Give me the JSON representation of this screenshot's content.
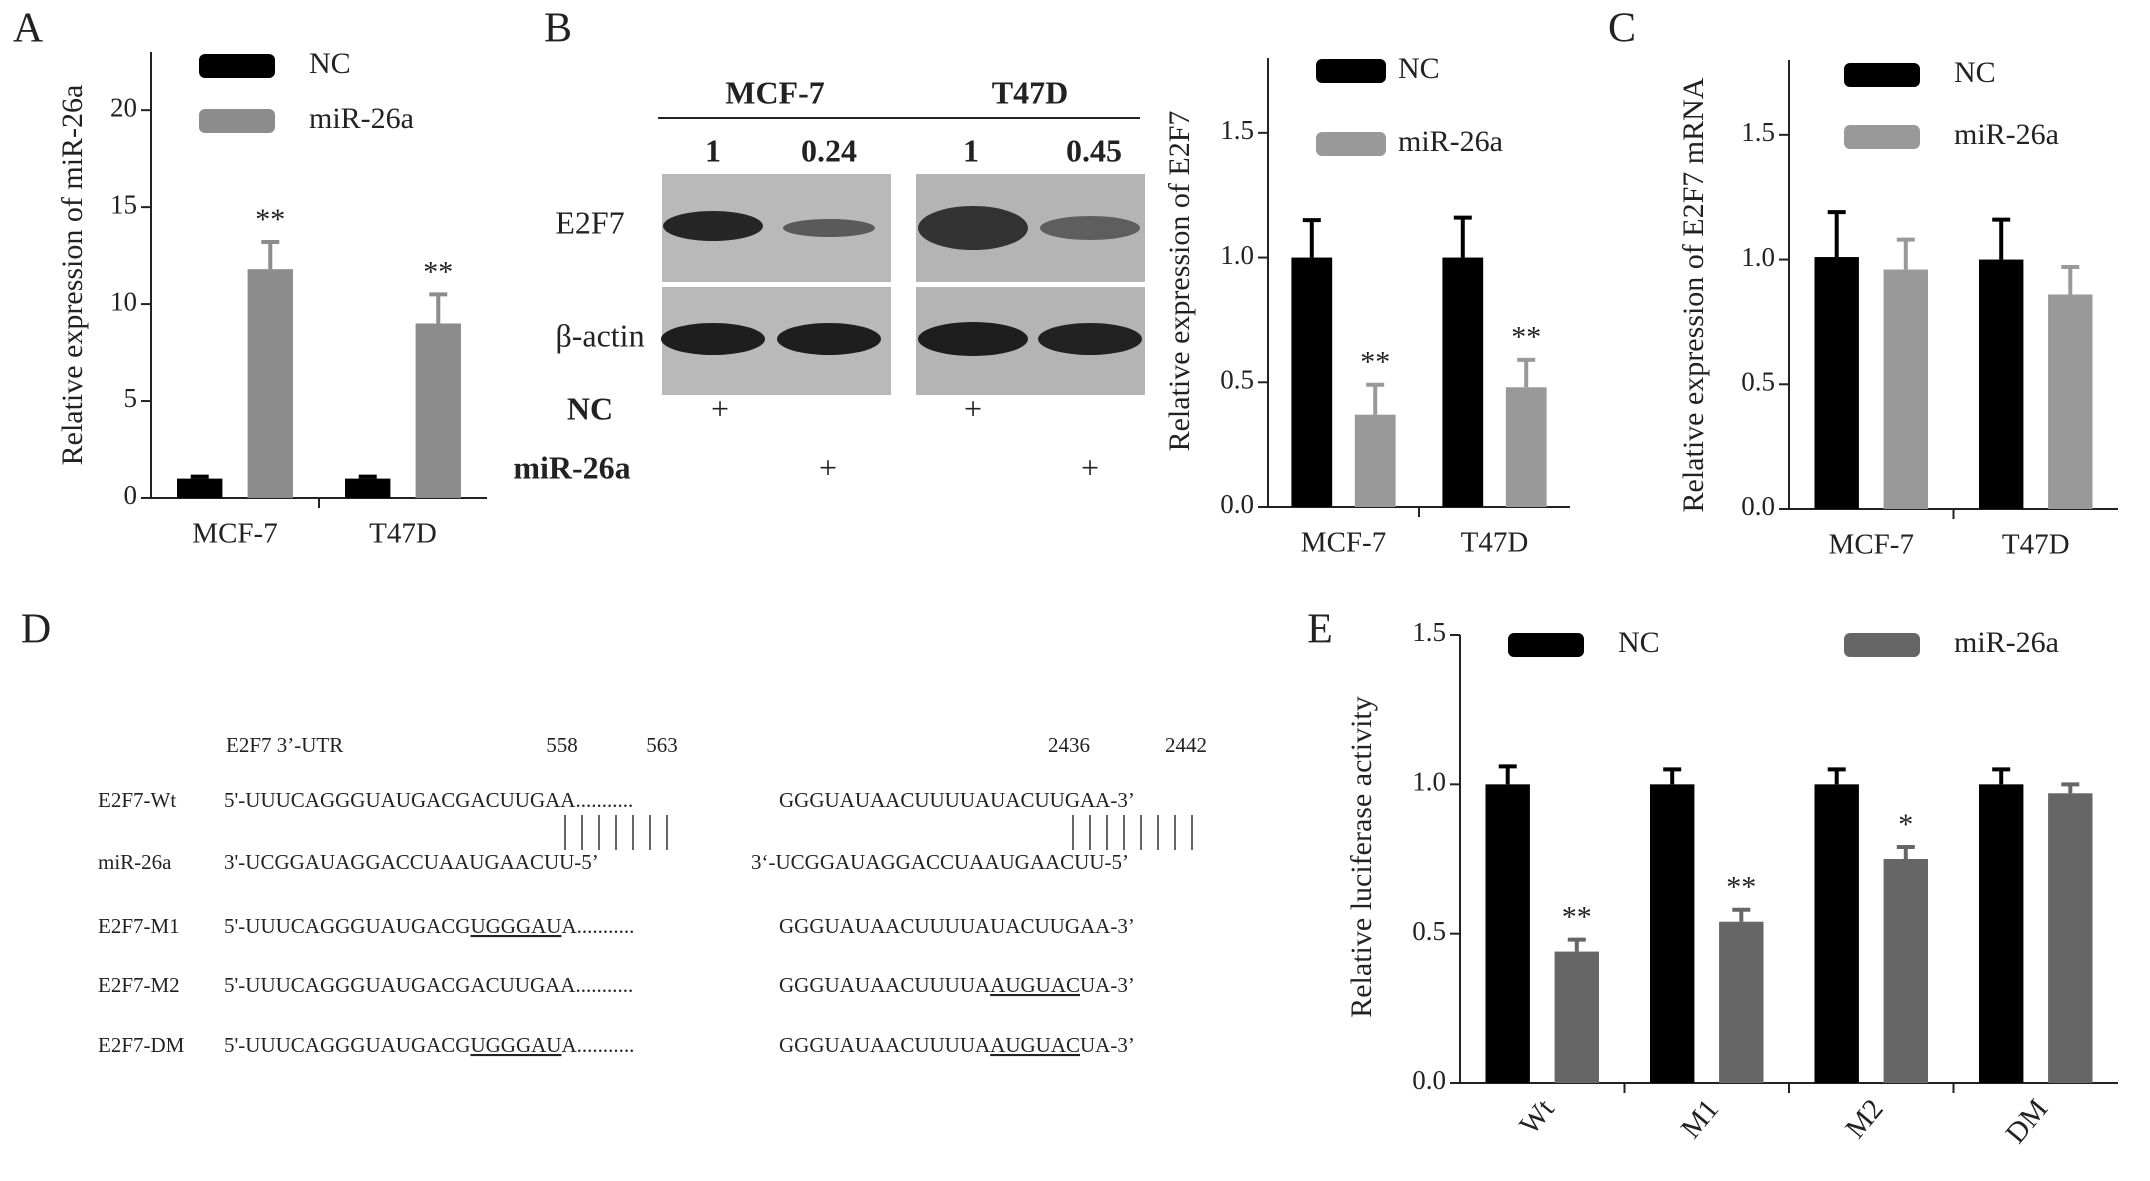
{
  "chart_data": [
    {
      "type": "bar",
      "label": "A",
      "ylabel": "Relative expression of miR-26a",
      "categories": [
        "MCF-7",
        "T47D"
      ],
      "series": [
        {
          "name": "NC",
          "color": "#000000",
          "values": [
            1,
            1
          ],
          "errors": [
            0.1,
            0.1
          ]
        },
        {
          "name": "miR-26a",
          "color": "#8c8c8c",
          "values": [
            11.8,
            9.0
          ],
          "errors": [
            1.4,
            1.5
          ],
          "stars": [
            "**",
            "**"
          ]
        }
      ],
      "ylim": [
        0,
        23
      ],
      "yticks": [
        0,
        5,
        10,
        15,
        20
      ]
    },
    {
      "type": "bar",
      "ylabel": "Relative expression of E2F7",
      "categories": [
        "MCF-7",
        "T47D"
      ],
      "series": [
        {
          "name": "NC",
          "color": "#000000",
          "values": [
            1.0,
            1.0
          ],
          "errors": [
            0.15,
            0.16
          ]
        },
        {
          "name": "miR-26a",
          "color": "#999999",
          "values": [
            0.37,
            0.48
          ],
          "errors": [
            0.12,
            0.11
          ],
          "stars": [
            "**",
            "**"
          ]
        }
      ],
      "ylim": [
        0,
        1.8
      ],
      "yticks": [
        {
          "value": 0,
          "label": "0.0"
        },
        {
          "value": 0.5,
          "label": "0.5"
        },
        {
          "value": 1,
          "label": "1.0"
        },
        {
          "value": 1.5,
          "label": "1.5"
        }
      ]
    },
    {
      "type": "bar",
      "label": "C",
      "ylabel": "Relative expression of E2F7 mRNA",
      "categories": [
        "MCF-7",
        "T47D"
      ],
      "series": [
        {
          "name": "NC",
          "color": "#000000",
          "values": [
            1.01,
            1.0
          ],
          "errors": [
            0.18,
            0.16
          ]
        },
        {
          "name": "miR-26a",
          "color": "#999999",
          "values": [
            0.96,
            0.86
          ],
          "errors": [
            0.12,
            0.11
          ]
        }
      ],
      "ylim": [
        0,
        1.8
      ],
      "yticks": [
        {
          "value": 0,
          "label": "0.0"
        },
        {
          "value": 0.5,
          "label": "0.5"
        },
        {
          "value": 1,
          "label": "1.0"
        },
        {
          "value": 1.5,
          "label": "1.5"
        }
      ]
    },
    {
      "type": "bar",
      "label": "E",
      "ylabel": "Relative luciferase activity",
      "categories": [
        "Wt",
        "M1",
        "M2",
        "DM"
      ],
      "series": [
        {
          "name": "NC",
          "color": "#000000",
          "values": [
            1,
            1,
            1,
            1
          ],
          "errors": [
            0.06,
            0.05,
            0.05,
            0.05
          ]
        },
        {
          "name": "miR-26a",
          "color": "#666666",
          "values": [
            0.44,
            0.54,
            0.75,
            0.97
          ],
          "errors": [
            0.04,
            0.04,
            0.04,
            0.03
          ],
          "stars": [
            "**",
            "**",
            "*",
            null
          ]
        }
      ],
      "ylim": [
        0,
        1.5
      ],
      "yticks": [
        {
          "value": 0,
          "label": "0.0"
        },
        {
          "value": 0.5,
          "label": "0.5"
        },
        {
          "value": 1,
          "label": "1.0"
        },
        {
          "value": 1.5,
          "label": "1.5"
        }
      ]
    }
  ],
  "blot": {
    "label": "B",
    "cell_lines": [
      "MCF-7",
      "T47D"
    ],
    "quantities": [
      "1",
      "0.24",
      "1",
      "0.45"
    ],
    "proteins": [
      "E2F7",
      "β-actin"
    ],
    "treatments": [
      {
        "name": "NC",
        "marks": [
          "+",
          "+"
        ]
      },
      {
        "name": "miR-26a",
        "marks": [
          "+",
          "+"
        ]
      }
    ]
  },
  "sequences": {
    "label": "D",
    "header": "E2F7 3’-UTR",
    "positions": [
      "558",
      "563",
      "2436",
      "2442"
    ],
    "rows": [
      {
        "name": "E2F7-Wt",
        "left": [
          {
            "text": "5'-UUUCAGGGUAUGACGACUUGAA..........."
          }
        ],
        "right": [
          {
            "text": "GGGUAUAACUUUUAUACUUGAA-3’"
          }
        ]
      },
      {
        "name": "miR-26a",
        "left": [
          {
            "text": "3'-UCGGAUAGGACCUAAUGAACUU-5’"
          }
        ],
        "right": [
          {
            "text": "3‘-UCGGAUAGGACCUAAUGAACUU-5’"
          }
        ]
      },
      {
        "name": "E2F7-M1",
        "left": [
          {
            "text": "5'-UUUCAGGGUAUGACG"
          },
          {
            "text": "UGGGAU",
            "underline": true
          },
          {
            "text": "A..........."
          }
        ],
        "right": [
          {
            "text": "GGGUAUAACUUUUAUACUUGAA-3’"
          }
        ]
      },
      {
        "name": "E2F7-M2",
        "left": [
          {
            "text": "5'-UUUCAGGGUAUGACGACUUGAA..........."
          }
        ],
        "right": [
          {
            "text": "GGGUAUAACUUUUA"
          },
          {
            "text": "AUGUAC",
            "underline": true
          },
          {
            "text": "UA-3’"
          }
        ]
      },
      {
        "name": "E2F7-DM",
        "left": [
          {
            "text": "5'-UUUCAGGGUAUGACG"
          },
          {
            "text": "UGGGAU",
            "underline": true
          },
          {
            "text": "A..........."
          }
        ],
        "right": [
          {
            "text": "GGGUAUAACUUUUA"
          },
          {
            "text": "AUGUAC",
            "underline": true
          },
          {
            "text": "UA-3’"
          }
        ]
      }
    ]
  }
}
